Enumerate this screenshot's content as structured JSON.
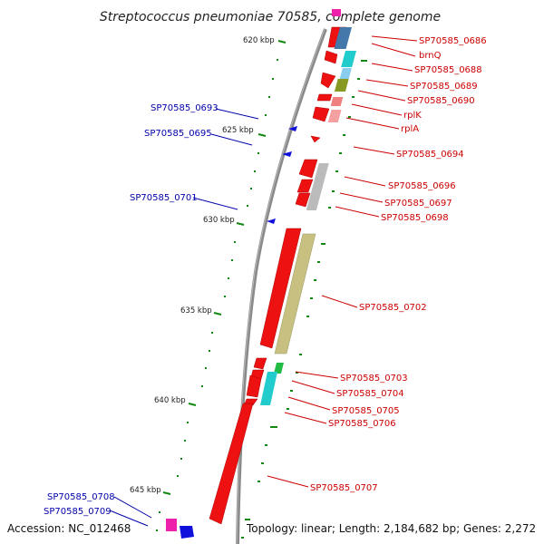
{
  "title": "Streptococcus pneumoniae 70585, complete genome",
  "accession": "Accession: NC_012468",
  "topology": "Topology: linear; Length: 2,184,682 bp; Genes: 2,272",
  "ticks": [
    "620 kbp",
    "625 kbp",
    "630 kbp",
    "635 kbp",
    "640 kbp",
    "645 kbp"
  ],
  "right_genes": [
    "SP70585_0686",
    "brnQ",
    "SP70585_0688",
    "SP70585_0689",
    "SP70585_0690",
    "rplK",
    "rplA",
    "SP70585_0694",
    "SP70585_0696",
    "SP70585_0697",
    "SP70585_0698",
    "SP70585_0702",
    "SP70585_0703",
    "SP70585_0704",
    "SP70585_0705",
    "SP70585_0706",
    "SP70585_0707"
  ],
  "left_genes": [
    "SP70585_0693",
    "SP70585_0695",
    "SP70585_0701",
    "SP70585_0708",
    "SP70585_0709"
  ],
  "colors": {
    "forward": "#ee1111",
    "reverse": "#1010dd",
    "tick": "#118811",
    "label_right": "#cc0000",
    "label_left": "#0000aa"
  }
}
